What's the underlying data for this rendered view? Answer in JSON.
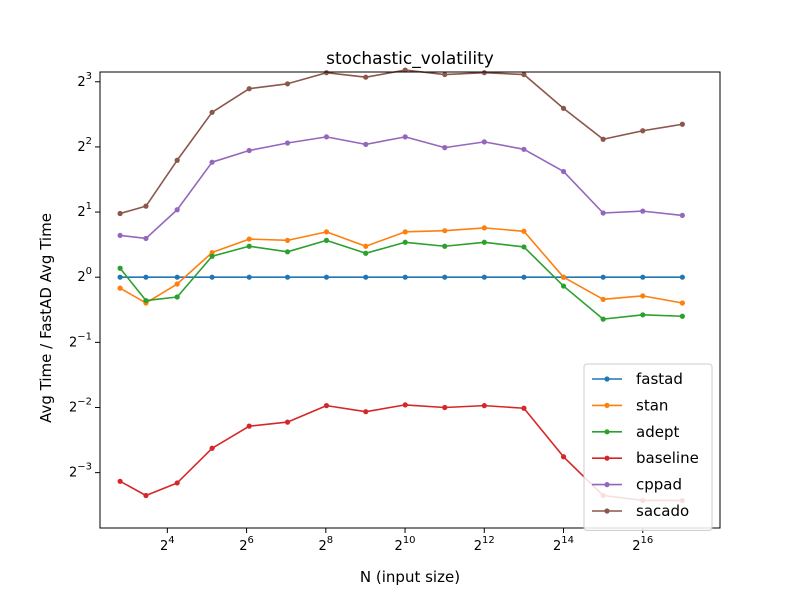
{
  "chart_data": {
    "type": "line",
    "title": "stochastic_volatility",
    "xlabel": "N (input size)",
    "ylabel": "Avg Time / FastAD Avg Time",
    "xscale": "log2",
    "yscale": "log2",
    "xlim_log2": [
      2.3,
      17.95
    ],
    "ylim_log2": [
      -3.85,
      3.15
    ],
    "xticks": [
      {
        "exp": 4,
        "label": "2",
        "sup": "4"
      },
      {
        "exp": 6,
        "label": "2",
        "sup": "6"
      },
      {
        "exp": 8,
        "label": "2",
        "sup": "8"
      },
      {
        "exp": 10,
        "label": "2",
        "sup": "10"
      },
      {
        "exp": 12,
        "label": "2",
        "sup": "12"
      },
      {
        "exp": 14,
        "label": "2",
        "sup": "14"
      },
      {
        "exp": 16,
        "label": "2",
        "sup": "16"
      }
    ],
    "yticks": [
      {
        "exp": -3,
        "label": "2",
        "sup": "−3"
      },
      {
        "exp": -2,
        "label": "2",
        "sup": "−2"
      },
      {
        "exp": -1,
        "label": "2",
        "sup": "−1"
      },
      {
        "exp": 0,
        "label": "2",
        "sup": "0"
      },
      {
        "exp": 1,
        "label": "2",
        "sup": "1"
      },
      {
        "exp": 2,
        "label": "2",
        "sup": "2"
      },
      {
        "exp": 3,
        "label": "2",
        "sup": "3"
      }
    ],
    "x": [
      7,
      11,
      19,
      35,
      67,
      131,
      259,
      515,
      1027,
      2051,
      4099,
      8195,
      16387,
      32771,
      65539,
      131075
    ],
    "series": [
      {
        "name": "fastad",
        "color": "#1f77b4",
        "values": [
          1.0,
          1.0,
          1.0,
          1.0,
          1.0,
          1.0,
          1.0,
          1.0,
          1.0,
          1.0,
          1.0,
          1.0,
          1.0,
          1.0,
          1.0,
          1.0
        ]
      },
      {
        "name": "stan",
        "color": "#ff7f0e",
        "values": [
          0.89,
          0.76,
          0.93,
          1.3,
          1.5,
          1.48,
          1.62,
          1.39,
          1.62,
          1.64,
          1.69,
          1.63,
          1.0,
          0.79,
          0.82,
          0.76
        ]
      },
      {
        "name": "adept",
        "color": "#2ca02c",
        "values": [
          1.1,
          0.78,
          0.81,
          1.25,
          1.39,
          1.31,
          1.48,
          1.29,
          1.45,
          1.39,
          1.45,
          1.38,
          0.91,
          0.64,
          0.67,
          0.66
        ]
      },
      {
        "name": "baseline",
        "color": "#d62728",
        "values": [
          0.114,
          0.098,
          0.112,
          0.162,
          0.205,
          0.214,
          0.255,
          0.239,
          0.257,
          0.25,
          0.255,
          0.248,
          0.148,
          0.098,
          0.093,
          0.093
        ]
      },
      {
        "name": "cppad",
        "color": "#9467bd",
        "values": [
          1.56,
          1.51,
          2.05,
          3.4,
          3.85,
          4.17,
          4.45,
          4.11,
          4.45,
          3.97,
          4.22,
          3.9,
          3.08,
          1.98,
          2.02,
          1.93
        ]
      },
      {
        "name": "sacado",
        "color": "#8c564b",
        "values": [
          1.97,
          2.13,
          3.47,
          5.78,
          7.43,
          7.83,
          8.81,
          8.4,
          9.06,
          8.64,
          8.81,
          8.64,
          6.03,
          4.34,
          4.75,
          5.09
        ]
      }
    ],
    "legend_placement": "lower-right",
    "grid": false
  }
}
